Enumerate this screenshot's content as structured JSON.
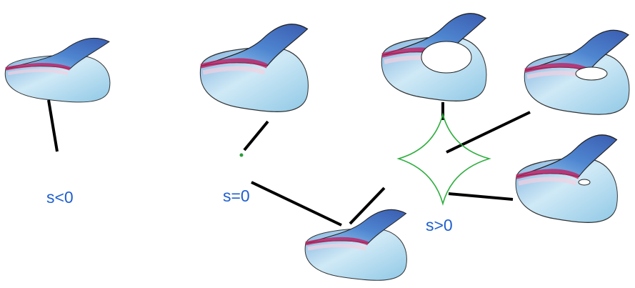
{
  "labels": {
    "negative": "s<0",
    "zero": "s=0",
    "positive": "s>0"
  }
}
